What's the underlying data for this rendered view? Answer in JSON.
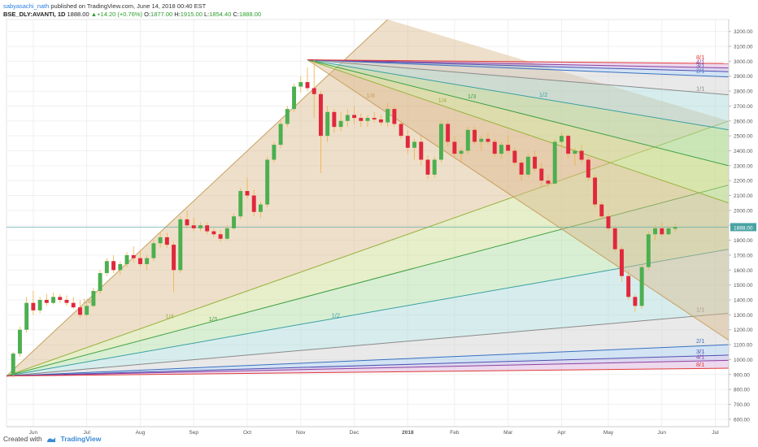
{
  "header": {
    "author": "sabyasachi_nath",
    "published": " published on TradingView.com, June 14, 2018 00:40 EST",
    "symbol": "BSE_DLY:AVANTI, 1D",
    "last": "1888.00",
    "change_arrow": "▲",
    "change": "+14.20 (+0.76%)",
    "o_label": "O:",
    "o": "1877.00",
    "h_label": "H:",
    "h": "1915.00",
    "l_label": "L:",
    "l": "1854.40",
    "c_label": "C:",
    "c": "1888.00"
  },
  "footer": {
    "created_with": "Created with",
    "brand": "TradingView"
  },
  "colors": {
    "up": "#4caf50",
    "down": "#e0283c",
    "price_line": "#4aa3a3",
    "axis_text": "#555555"
  },
  "chart_data": {
    "type": "candlestick",
    "y_ticks": [
      "600.00",
      "700.00",
      "800.00",
      "900.00",
      "1000.00",
      "1100.00",
      "1200.00",
      "1300.00",
      "1400.00",
      "1500.00",
      "1600.00",
      "1700.00",
      "1800.00",
      "1900.00",
      "2000.00",
      "2100.00",
      "2200.00",
      "2300.00",
      "2400.00",
      "2500.00",
      "2600.00",
      "2700.00",
      "2800.00",
      "2900.00",
      "3000.00",
      "3100.00",
      "3200.00"
    ],
    "x_ticks": [
      "Jun",
      "Jul",
      "Aug",
      "Sep",
      "Oct",
      "Nov",
      "Dec",
      "2018",
      "Feb",
      "Mar",
      "Apr",
      "May",
      "Jun",
      "Jul"
    ],
    "current_price_label": "1888.00",
    "ylim": [
      550,
      3280
    ],
    "xlim": [
      0,
      108
    ],
    "gann_fans": [
      {
        "pivot": [
          0,
          890
        ],
        "lines": [
          {
            "label": "1/8",
            "end": [
              57,
              3280
            ],
            "color": "#c8a060"
          },
          {
            "label": "1/4",
            "end": [
              108,
              2600
            ],
            "color": "#9ab340"
          },
          {
            "label": "1/3",
            "end": [
              108,
              2170
            ],
            "color": "#40a040"
          },
          {
            "label": "1/2",
            "end": [
              108,
              1740
            ],
            "color": "#3aa0a0"
          },
          {
            "label": "1/1",
            "end": [
              108,
              1310
            ],
            "color": "#8a8a8a"
          },
          {
            "label": "2/1",
            "end": [
              108,
              1100
            ],
            "color": "#3a70c0"
          },
          {
            "label": "3/1",
            "end": [
              108,
              1030
            ],
            "color": "#5050b0"
          },
          {
            "label": "4/1",
            "end": [
              108,
              995
            ],
            "color": "#9040a0"
          },
          {
            "label": "8/1",
            "end": [
              108,
              942
            ],
            "color": "#e03a3a"
          }
        ]
      },
      {
        "pivot": [
          45,
          3010
        ],
        "lines": [
          {
            "label": "1/8",
            "end": [
              108,
              1130
            ],
            "color": "#c8a060"
          },
          {
            "label": "1/4",
            "end": [
              108,
              2050
            ],
            "color": "#9ab340"
          },
          {
            "label": "1/3",
            "end": [
              108,
              2300
            ],
            "color": "#40a040"
          },
          {
            "label": "1/2",
            "end": [
              108,
              2540
            ],
            "color": "#3aa0a0"
          },
          {
            "label": "1/1",
            "end": [
              108,
              2775
            ],
            "color": "#8a8a8a"
          },
          {
            "label": "2/1",
            "end": [
              108,
              2895
            ],
            "color": "#3a70c0"
          },
          {
            "label": "3/1",
            "end": [
              108,
              2930
            ],
            "color": "#5050b0"
          },
          {
            "label": "4/1",
            "end": [
              108,
              2955
            ],
            "color": "#9040a0"
          },
          {
            "label": "8/1",
            "end": [
              108,
              2985
            ],
            "color": "#e03a3a"
          }
        ]
      }
    ],
    "candles": [
      [
        1,
        900,
        1050,
        880,
        1040
      ],
      [
        2,
        1040,
        1220,
        1020,
        1200
      ],
      [
        3,
        1200,
        1420,
        1180,
        1380
      ],
      [
        4,
        1380,
        1460,
        1300,
        1330
      ],
      [
        5,
        1330,
        1420,
        1310,
        1400
      ],
      [
        6,
        1400,
        1440,
        1360,
        1380
      ],
      [
        7,
        1380,
        1450,
        1370,
        1420
      ],
      [
        8,
        1420,
        1440,
        1380,
        1400
      ],
      [
        9,
        1400,
        1430,
        1360,
        1380
      ],
      [
        10,
        1380,
        1420,
        1340,
        1350
      ],
      [
        11,
        1350,
        1400,
        1280,
        1300
      ],
      [
        12,
        1300,
        1380,
        1290,
        1360
      ],
      [
        13,
        1360,
        1480,
        1350,
        1460
      ],
      [
        14,
        1460,
        1600,
        1440,
        1580
      ],
      [
        15,
        1580,
        1680,
        1560,
        1660
      ],
      [
        16,
        1660,
        1700,
        1580,
        1600
      ],
      [
        17,
        1600,
        1660,
        1570,
        1640
      ],
      [
        18,
        1640,
        1720,
        1620,
        1700
      ],
      [
        19,
        1700,
        1760,
        1650,
        1680
      ],
      [
        20,
        1680,
        1730,
        1620,
        1640
      ],
      [
        21,
        1640,
        1700,
        1600,
        1680
      ],
      [
        22,
        1680,
        1800,
        1660,
        1780
      ],
      [
        23,
        1780,
        1860,
        1750,
        1820
      ],
      [
        24,
        1820,
        1850,
        1750,
        1770
      ],
      [
        25,
        1770,
        1790,
        1450,
        1600
      ],
      [
        26,
        1600,
        1960,
        1580,
        1940
      ],
      [
        27,
        1940,
        2000,
        1880,
        1900
      ],
      [
        28,
        1900,
        1950,
        1860,
        1880
      ],
      [
        29,
        1880,
        1920,
        1860,
        1900
      ],
      [
        30,
        1900,
        1920,
        1840,
        1860
      ],
      [
        31,
        1860,
        1880,
        1820,
        1840
      ],
      [
        32,
        1840,
        1870,
        1790,
        1810
      ],
      [
        33,
        1810,
        1900,
        1800,
        1880
      ],
      [
        34,
        1880,
        1980,
        1870,
        1960
      ],
      [
        35,
        1960,
        2150,
        1940,
        2130
      ],
      [
        36,
        2130,
        2220,
        2080,
        2100
      ],
      [
        37,
        2100,
        2140,
        1960,
        1990
      ],
      [
        38,
        1990,
        2060,
        1950,
        2040
      ],
      [
        39,
        2040,
        2360,
        2020,
        2340
      ],
      [
        40,
        2340,
        2460,
        2320,
        2440
      ],
      [
        41,
        2440,
        2600,
        2420,
        2580
      ],
      [
        42,
        2580,
        2700,
        2560,
        2680
      ],
      [
        43,
        2680,
        2850,
        2660,
        2830
      ],
      [
        44,
        2830,
        2900,
        2790,
        2860
      ],
      [
        45,
        2860,
        2960,
        2800,
        2820
      ],
      [
        46,
        2820,
        3010,
        2620,
        2780
      ],
      [
        47,
        2780,
        2800,
        2250,
        2500
      ],
      [
        48,
        2500,
        2700,
        2460,
        2660
      ],
      [
        49,
        2660,
        2680,
        2520,
        2560
      ],
      [
        50,
        2560,
        2660,
        2530,
        2600
      ],
      [
        51,
        2600,
        2680,
        2560,
        2640
      ],
      [
        52,
        2640,
        2700,
        2580,
        2620
      ],
      [
        53,
        2620,
        2650,
        2560,
        2600
      ],
      [
        54,
        2600,
        2640,
        2560,
        2620
      ],
      [
        55,
        2620,
        2660,
        2590,
        2610
      ],
      [
        56,
        2610,
        2640,
        2570,
        2590
      ],
      [
        57,
        2590,
        2720,
        2560,
        2680
      ],
      [
        58,
        2680,
        2700,
        2560,
        2580
      ],
      [
        59,
        2580,
        2600,
        2480,
        2500
      ],
      [
        60,
        2500,
        2540,
        2380,
        2420
      ],
      [
        61,
        2420,
        2480,
        2340,
        2460
      ],
      [
        62,
        2460,
        2500,
        2300,
        2340
      ],
      [
        63,
        2340,
        2370,
        2210,
        2240
      ],
      [
        64,
        2240,
        2360,
        2220,
        2340
      ],
      [
        65,
        2340,
        2600,
        2320,
        2580
      ],
      [
        66,
        2580,
        2600,
        2430,
        2460
      ],
      [
        67,
        2460,
        2500,
        2360,
        2380
      ],
      [
        68,
        2380,
        2420,
        2330,
        2400
      ],
      [
        69,
        2400,
        2560,
        2380,
        2540
      ],
      [
        70,
        2540,
        2560,
        2440,
        2460
      ],
      [
        71,
        2460,
        2500,
        2400,
        2480
      ],
      [
        72,
        2480,
        2520,
        2440,
        2460
      ],
      [
        73,
        2460,
        2480,
        2360,
        2380
      ],
      [
        74,
        2380,
        2460,
        2350,
        2440
      ],
      [
        75,
        2440,
        2500,
        2380,
        2400
      ],
      [
        76,
        2400,
        2420,
        2300,
        2320
      ],
      [
        77,
        2320,
        2340,
        2200,
        2240
      ],
      [
        78,
        2240,
        2380,
        2220,
        2360
      ],
      [
        79,
        2360,
        2400,
        2260,
        2280
      ],
      [
        80,
        2280,
        2320,
        2160,
        2200
      ],
      [
        81,
        2200,
        2240,
        2150,
        2180
      ],
      [
        82,
        2180,
        2480,
        2170,
        2460
      ],
      [
        83,
        2460,
        2520,
        2420,
        2500
      ],
      [
        84,
        2500,
        2510,
        2350,
        2380
      ],
      [
        85,
        2380,
        2420,
        2300,
        2400
      ],
      [
        86,
        2400,
        2440,
        2320,
        2340
      ],
      [
        87,
        2340,
        2360,
        2200,
        2220
      ],
      [
        88,
        2220,
        2240,
        2020,
        2040
      ],
      [
        89,
        2040,
        2060,
        1940,
        1960
      ],
      [
        90,
        1960,
        1980,
        1860,
        1880
      ],
      [
        91,
        1880,
        1900,
        1720,
        1740
      ],
      [
        92,
        1740,
        1760,
        1520,
        1560
      ],
      [
        93,
        1560,
        1600,
        1400,
        1420
      ],
      [
        94,
        1420,
        1440,
        1320,
        1360
      ],
      [
        95,
        1360,
        1640,
        1340,
        1620
      ],
      [
        96,
        1620,
        1860,
        1600,
        1840
      ],
      [
        97,
        1840,
        1900,
        1800,
        1880
      ],
      [
        98,
        1880,
        1920,
        1820,
        1840
      ],
      [
        99,
        1840,
        1900,
        1830,
        1880
      ],
      [
        100,
        1877,
        1915,
        1854,
        1888
      ]
    ]
  }
}
